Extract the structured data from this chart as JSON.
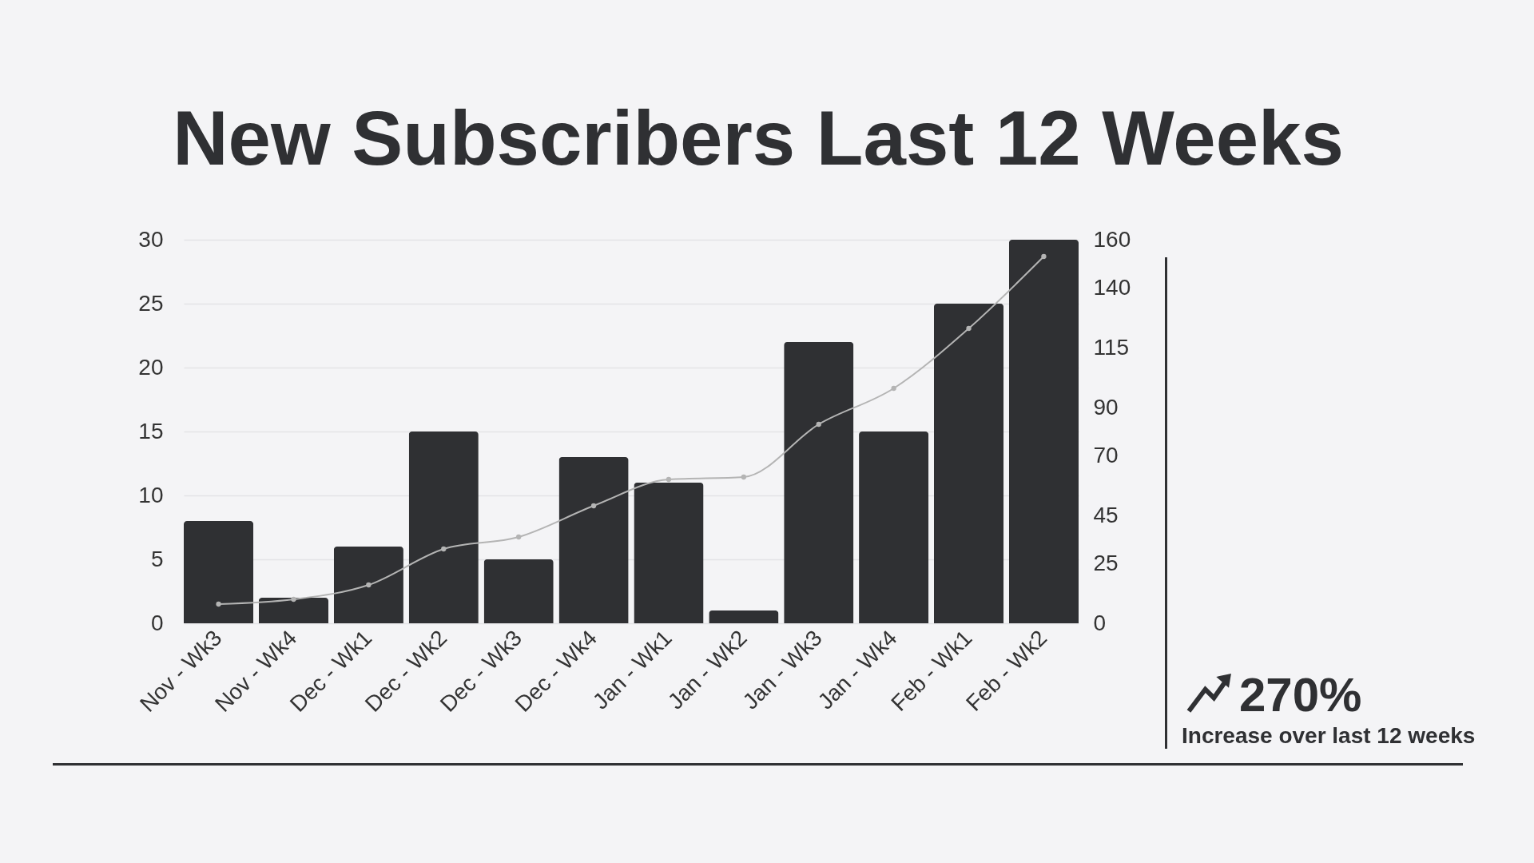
{
  "chart_data": {
    "type": "bar",
    "title": "New Subscribers Last 12 Weeks",
    "categories": [
      "Nov - Wk3",
      "Nov - Wk4",
      "Dec - Wk1",
      "Dec - Wk2",
      "Dec - Wk3",
      "Dec - Wk4",
      "Jan - Wk1",
      "Jan - Wk2",
      "Jan - Wk3",
      "Jan - Wk4",
      "Feb - Wk1",
      "Feb - Wk2"
    ],
    "series": [
      {
        "color": "#2f3033",
        "values": [
          8,
          2,
          6,
          15,
          5,
          13,
          11,
          1,
          22,
          15,
          25,
          30
        ]
      },
      {
        "type": "line",
        "axis": "y2",
        "color": "#b4b4b4",
        "values": [
          8,
          10,
          16,
          31,
          36,
          49,
          60,
          61,
          83,
          98,
          123,
          153
        ]
      }
    ],
    "ylim": [
      0,
      30
    ],
    "yticks": [
      0,
      5,
      10,
      15,
      20,
      25,
      30
    ],
    "y2lim": [
      0,
      160
    ],
    "y2ticks": [
      0,
      25,
      45,
      70,
      90,
      115,
      140,
      160
    ],
    "grid": "y",
    "marker": "circle",
    "annotations": [
      "270%",
      "Increase over last 12 weeks"
    ]
  }
}
